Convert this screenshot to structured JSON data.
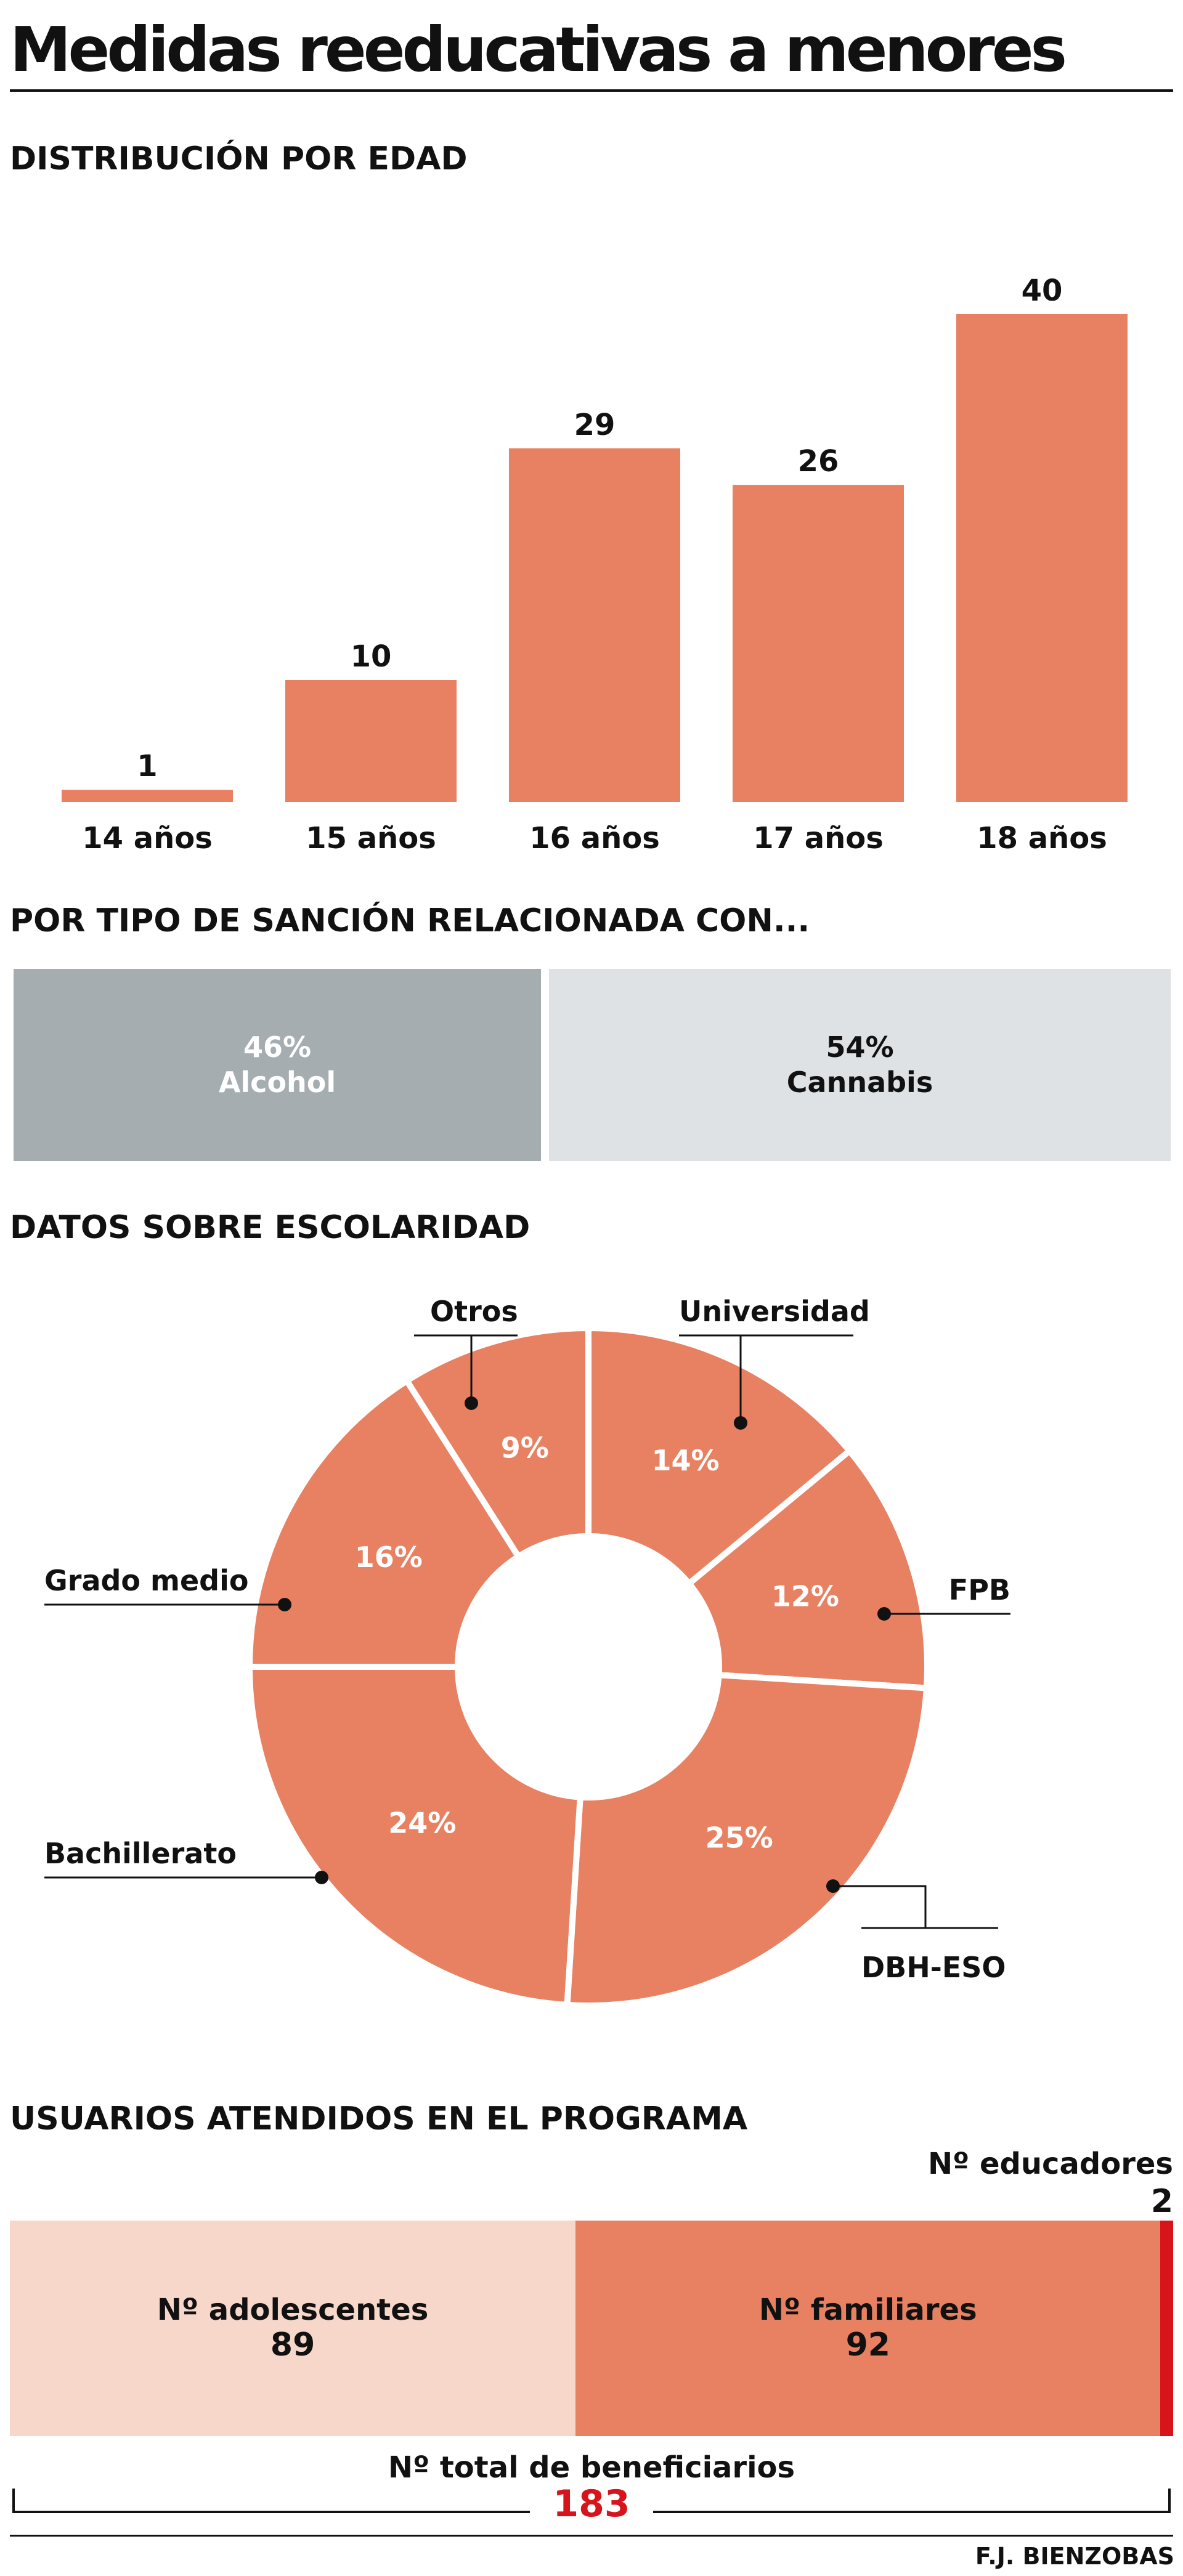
{
  "title": "Medidas reeducativas a menores",
  "colors": {
    "bar": "#e88062",
    "alcohol": "#a5adb1",
    "cannabis": "#dee2e4",
    "adolescentes": "#f6d7c9",
    "familiares": "#e88062",
    "educadores": "#d7141c",
    "total": "#d7141c"
  },
  "sections": {
    "edad": "DISTRIBUCIÓN POR EDAD",
    "sancion": "POR TIPO DE SANCIÓN RELACIONADA CON...",
    "escolaridad": "DATOS SOBRE ESCOLARIDAD",
    "usuarios": "USUARIOS ATENDIDOS EN EL PROGRAMA"
  },
  "chart_data": [
    {
      "type": "bar",
      "title": "DISTRIBUCIÓN POR EDAD",
      "categories": [
        "14 años",
        "15 años",
        "16 años",
        "17 años",
        "18 años"
      ],
      "values": [
        1,
        10,
        29,
        26,
        40
      ],
      "ylim": [
        0,
        40
      ],
      "grid": false
    },
    {
      "type": "bar",
      "title": "POR TIPO DE SANCIÓN RELACIONADA CON...",
      "stacked": true,
      "series": [
        {
          "name": "Alcohol",
          "value": 46,
          "label": "46%"
        },
        {
          "name": "Cannabis",
          "value": 54,
          "label": "54%"
        }
      ]
    },
    {
      "type": "pie",
      "title": "DATOS SOBRE ESCOLARIDAD",
      "donut": true,
      "slices": [
        {
          "name": "Universidad",
          "value": 14,
          "label": "14%"
        },
        {
          "name": "FPB",
          "value": 12,
          "label": "12%"
        },
        {
          "name": "DBH-ESO",
          "value": 25,
          "label": "25%"
        },
        {
          "name": "Bachillerato",
          "value": 24,
          "label": "24%"
        },
        {
          "name": "Grado medio",
          "value": 16,
          "label": "16%"
        },
        {
          "name": "Otros",
          "value": 9,
          "label": "9%"
        }
      ]
    },
    {
      "type": "bar",
      "title": "USUARIOS ATENDIDOS EN EL PROGRAMA",
      "stacked": true,
      "series": [
        {
          "name": "Nº adolescentes",
          "value": 89
        },
        {
          "name": "Nº familiares",
          "value": 92
        },
        {
          "name": "Nº educadores",
          "value": 2
        }
      ],
      "total_label": "Nº total de beneficiarios",
      "total": 183
    }
  ],
  "credit": "F.J. BIENZOBAS"
}
